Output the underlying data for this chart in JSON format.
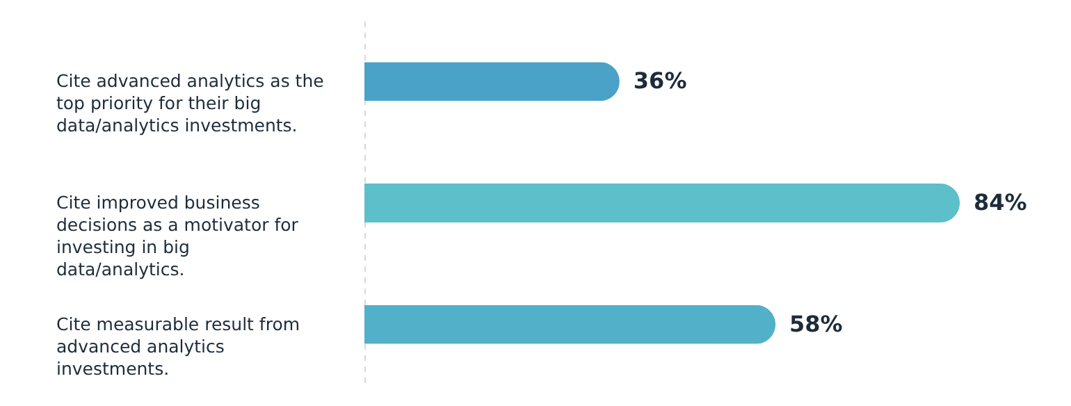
{
  "chart_data": {
    "type": "bar",
    "orientation": "horizontal",
    "categories": [
      "Cite advanced analytics as the top priority for their big data/analytics investments.",
      "Cite improved business decisions as a motivator for investing in big data/analytics.",
      "Cite measurable result from advanced analytics investments."
    ],
    "values": [
      36,
      84,
      58
    ],
    "colors": [
      "#4aa2c9",
      "#5cbfca",
      "#52b0c9"
    ],
    "value_labels": [
      "36%",
      "84%",
      "58%"
    ]
  }
}
